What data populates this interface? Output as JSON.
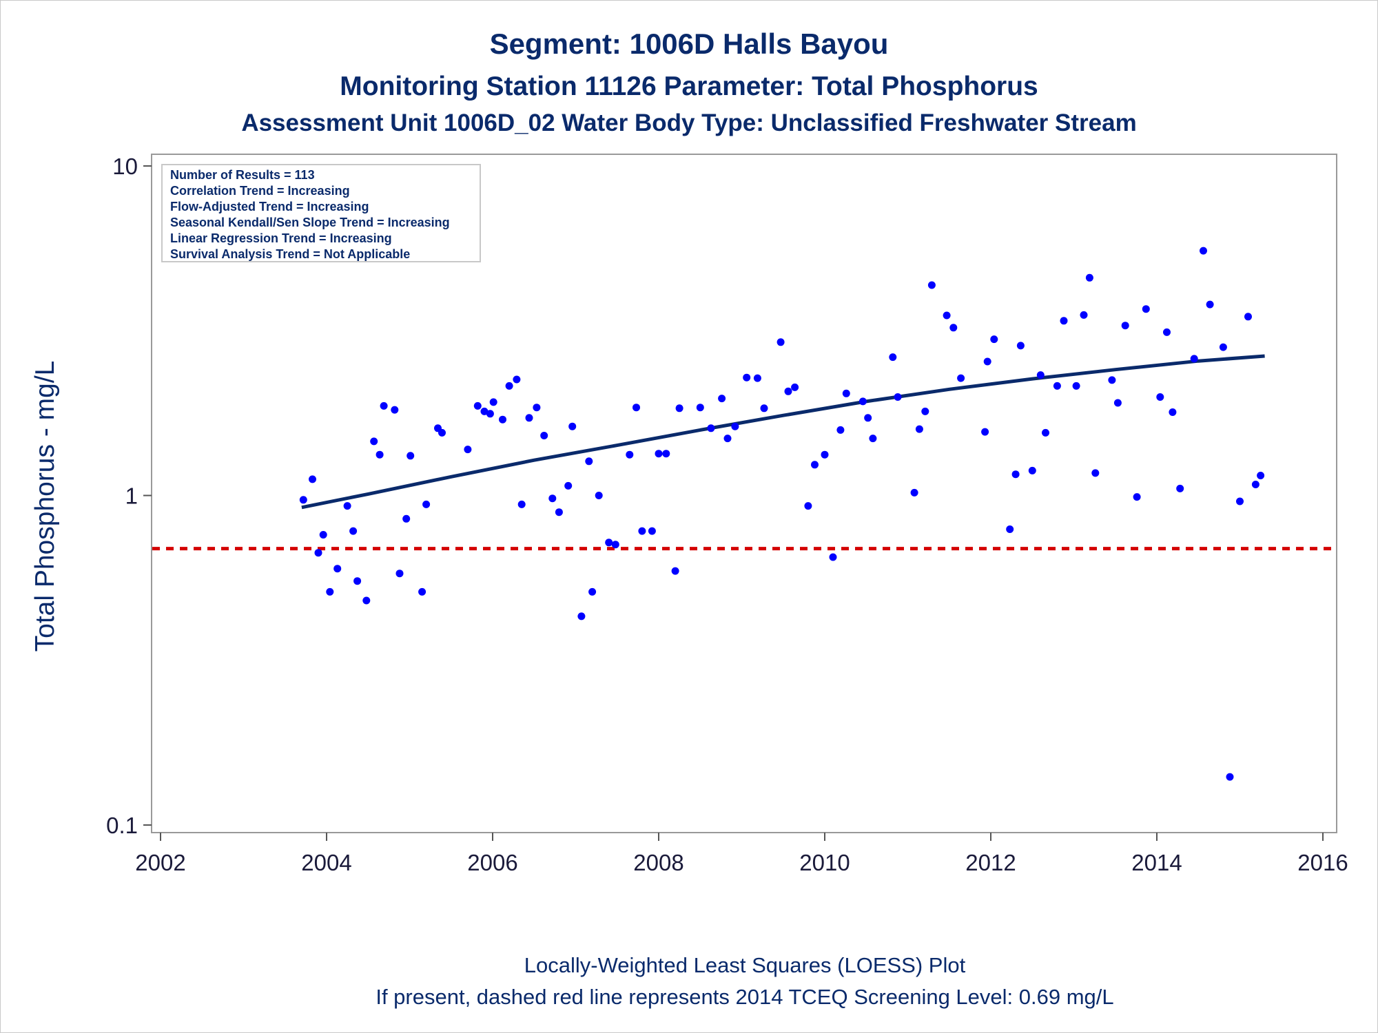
{
  "chart_data": {
    "type": "scatter",
    "title": "Segment: 1006D  Halls Bayou",
    "subtitle": "Monitoring Station 11126 Parameter: Total Phosphorus",
    "subtitle2": "Assessment Unit 1006D_02   Water Body Type: Unclassified Freshwater Stream",
    "xlabel": "",
    "ylabel": "Total Phosphorus - mg/L",
    "xlim": [
      2002,
      2016
    ],
    "ylim": [
      0.1,
      10
    ],
    "yscale": "log",
    "grid": false,
    "x_ticks": [
      "2002",
      "2004",
      "2006",
      "2008",
      "2010",
      "2012",
      "2014",
      "2016"
    ],
    "y_ticks": [
      "0.1",
      "1",
      "10"
    ],
    "stats_box": {
      "placement": "top-left",
      "lines": [
        "Number of Results = 113",
        "Correlation Trend = Increasing",
        "Flow-Adjusted Trend = Increasing",
        "Seasonal Kendall/Sen Slope Trend = Increasing",
        "Linear Regression Trend = Increasing",
        "Survival Analysis Trend = Not Applicable"
      ]
    },
    "screening_level": {
      "value": 0.69,
      "style": "dashed",
      "color": "#d40000"
    },
    "loess": {
      "color": "#0a2a6b",
      "points": [
        [
          2003.7,
          0.92
        ],
        [
          2004.5,
          1.01
        ],
        [
          2005.5,
          1.14
        ],
        [
          2006.5,
          1.28
        ],
        [
          2007.5,
          1.42
        ],
        [
          2008.5,
          1.58
        ],
        [
          2009.5,
          1.75
        ],
        [
          2010.5,
          1.93
        ],
        [
          2011.5,
          2.1
        ],
        [
          2012.5,
          2.26
        ],
        [
          2013.5,
          2.41
        ],
        [
          2014.5,
          2.56
        ],
        [
          2015.3,
          2.65
        ]
      ]
    },
    "series": [
      {
        "color": "#0000ff",
        "points": [
          [
            2003.72,
            0.97
          ],
          [
            2003.83,
            1.12
          ],
          [
            2003.9,
            0.67
          ],
          [
            2003.96,
            0.76
          ],
          [
            2004.04,
            0.51
          ],
          [
            2004.13,
            0.6
          ],
          [
            2004.25,
            0.93
          ],
          [
            2004.32,
            0.78
          ],
          [
            2004.37,
            0.55
          ],
          [
            2004.48,
            0.48
          ],
          [
            2004.57,
            1.46
          ],
          [
            2004.64,
            1.33
          ],
          [
            2004.69,
            1.87
          ],
          [
            2004.82,
            1.82
          ],
          [
            2004.88,
            0.58
          ],
          [
            2004.96,
            0.85
          ],
          [
            2005.01,
            1.32
          ],
          [
            2005.15,
            0.51
          ],
          [
            2005.2,
            0.94
          ],
          [
            2005.34,
            1.6
          ],
          [
            2005.39,
            1.55
          ],
          [
            2005.7,
            1.38
          ],
          [
            2005.82,
            1.87
          ],
          [
            2005.9,
            1.8
          ],
          [
            2005.97,
            1.77
          ],
          [
            2006.01,
            1.92
          ],
          [
            2006.12,
            1.7
          ],
          [
            2006.2,
            2.15
          ],
          [
            2006.29,
            2.25
          ],
          [
            2006.35,
            0.94
          ],
          [
            2006.44,
            1.72
          ],
          [
            2006.53,
            1.85
          ],
          [
            2006.62,
            1.52
          ],
          [
            2006.72,
            0.98
          ],
          [
            2006.8,
            0.89
          ],
          [
            2006.91,
            1.07
          ],
          [
            2006.96,
            1.62
          ],
          [
            2007.07,
            0.43
          ],
          [
            2007.16,
            1.27
          ],
          [
            2007.2,
            0.51
          ],
          [
            2007.28,
            1.0
          ],
          [
            2007.4,
            0.72
          ],
          [
            2007.48,
            0.71
          ],
          [
            2007.65,
            1.33
          ],
          [
            2007.73,
            1.85
          ],
          [
            2007.8,
            0.78
          ],
          [
            2007.92,
            0.78
          ],
          [
            2008.0,
            1.34
          ],
          [
            2008.09,
            1.34
          ],
          [
            2008.2,
            0.59
          ],
          [
            2008.25,
            1.84
          ],
          [
            2008.5,
            1.85
          ],
          [
            2008.63,
            1.6
          ],
          [
            2008.76,
            1.97
          ],
          [
            2008.83,
            1.49
          ],
          [
            2008.92,
            1.62
          ],
          [
            2009.06,
            2.28
          ],
          [
            2009.19,
            2.27
          ],
          [
            2009.27,
            1.84
          ],
          [
            2009.47,
            2.92
          ],
          [
            2009.56,
            2.07
          ],
          [
            2009.64,
            2.13
          ],
          [
            2009.8,
            0.93
          ],
          [
            2009.88,
            1.24
          ],
          [
            2010.0,
            1.33
          ],
          [
            2010.1,
            0.65
          ],
          [
            2010.19,
            1.58
          ],
          [
            2010.26,
            2.04
          ],
          [
            2010.46,
            1.93
          ],
          [
            2010.52,
            1.72
          ],
          [
            2010.58,
            1.49
          ],
          [
            2010.82,
            2.63
          ],
          [
            2010.88,
            1.99
          ],
          [
            2011.08,
            1.02
          ],
          [
            2011.14,
            1.59
          ],
          [
            2011.21,
            1.8
          ],
          [
            2011.29,
            4.35
          ],
          [
            2011.47,
            3.52
          ],
          [
            2011.55,
            3.23
          ],
          [
            2011.64,
            2.27
          ],
          [
            2011.93,
            1.56
          ],
          [
            2011.96,
            2.55
          ],
          [
            2012.04,
            2.98
          ],
          [
            2012.23,
            0.79
          ],
          [
            2012.3,
            1.16
          ],
          [
            2012.36,
            2.85
          ],
          [
            2012.5,
            1.19
          ],
          [
            2012.6,
            2.32
          ],
          [
            2012.66,
            1.55
          ],
          [
            2012.8,
            2.15
          ],
          [
            2012.88,
            3.39
          ],
          [
            2013.03,
            2.15
          ],
          [
            2013.12,
            3.53
          ],
          [
            2013.19,
            4.58
          ],
          [
            2013.26,
            1.17
          ],
          [
            2013.46,
            2.24
          ],
          [
            2013.53,
            1.91
          ],
          [
            2013.62,
            3.28
          ],
          [
            2013.76,
            0.99
          ],
          [
            2013.87,
            3.68
          ],
          [
            2014.04,
            1.99
          ],
          [
            2014.12,
            3.13
          ],
          [
            2014.19,
            1.79
          ],
          [
            2014.28,
            1.05
          ],
          [
            2014.45,
            2.6
          ],
          [
            2014.56,
            5.53
          ],
          [
            2014.64,
            3.8
          ],
          [
            2014.8,
            2.82
          ],
          [
            2014.88,
            0.14
          ],
          [
            2015.0,
            0.96
          ],
          [
            2015.1,
            3.49
          ],
          [
            2015.19,
            1.08
          ],
          [
            2015.25,
            1.15
          ]
        ]
      }
    ],
    "footnote1": "Locally-Weighted Least Squares (LOESS) Plot",
    "footnote2": "If present, dashed red line represents 2014 TCEQ Screening Level: 0.69 mg/L"
  }
}
